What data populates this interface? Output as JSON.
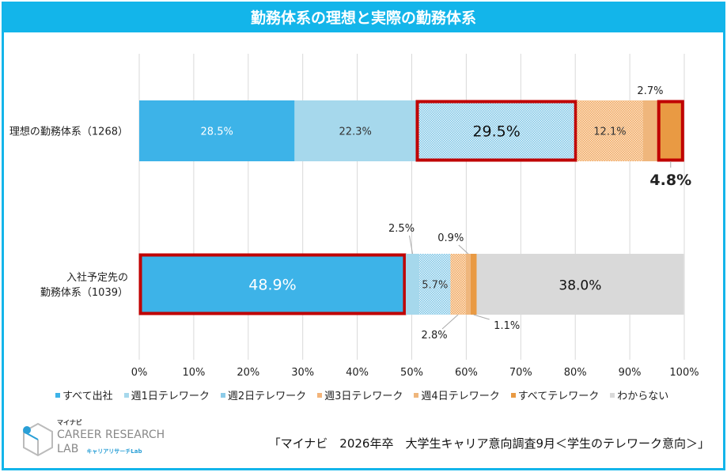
{
  "title": "勤務体系の理想と実際の勤務体系",
  "chart_data": {
    "type": "bar",
    "orientation": "horizontal-stacked-100",
    "title": "勤務体系の理想と実際の勤務体系",
    "categories": [
      "理想の勤務体系（1268）",
      "入社予定先の\n勤務体系（1039）"
    ],
    "category_lines": [
      [
        "理想の勤務体系（1268）"
      ],
      [
        "入社予定先の",
        "勤務体系（1039）"
      ]
    ],
    "series": [
      {
        "name": "すべて出社",
        "values": [
          28.5,
          48.9
        ],
        "color": "#3db3e8"
      },
      {
        "name": "週1日テレワーク",
        "values": [
          22.3,
          2.5
        ],
        "color": "#a6d8ec"
      },
      {
        "name": "週2日テレワーク",
        "values": [
          29.5,
          5.7
        ],
        "color": "#8ccbe8"
      },
      {
        "name": "週3日テレワーク",
        "values": [
          12.1,
          2.8
        ],
        "color": "#f3b47a"
      },
      {
        "name": "週4日テレワーク",
        "values": [
          2.7,
          0.9
        ],
        "color": "#efb67c"
      },
      {
        "name": "すべてテレワーク",
        "values": [
          4.8,
          1.1
        ],
        "color": "#e99a43"
      },
      {
        "name": "わからない",
        "values": [
          0,
          38.0
        ],
        "color": "#d9d9d9"
      }
    ],
    "value_labels": [
      [
        "28.5%",
        "22.3%",
        "29.5%",
        "12.1%",
        "2.7%",
        "4.8%",
        ""
      ],
      [
        "48.9%",
        "2.5%",
        "5.7%",
        "2.8%",
        "0.9%",
        "1.1%",
        "38.0%"
      ]
    ],
    "xlim": [
      0,
      100
    ],
    "xticks": [
      "0%",
      "10%",
      "20%",
      "30%",
      "40%",
      "50%",
      "60%",
      "70%",
      "80%",
      "90%",
      "100%"
    ],
    "grid": true,
    "legend_position": "bottom",
    "highlight_color": "#c00000"
  },
  "source": "「マイナビ　2026年卒　大学生キャリア意向調査9月＜学生のテレワーク意向＞」",
  "logo": {
    "brand": "マイナビ",
    "line1": "CAREER RESEARCH",
    "line2": "LAB",
    "line3": "キャリアリサーチLab"
  }
}
